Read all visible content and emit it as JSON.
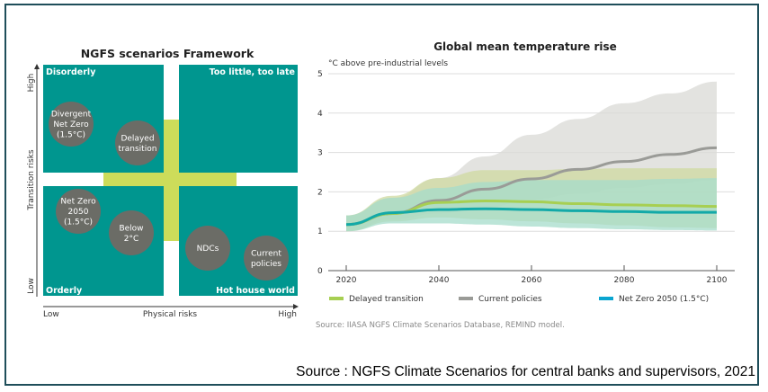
{
  "framework": {
    "title": "NGFS scenarios Framework",
    "y_axis": {
      "label": "Transition risks",
      "high": "High",
      "low": "Low"
    },
    "x_axis": {
      "label": "Physical risks",
      "low": "Low",
      "high": "High"
    },
    "quadrants": [
      "Disorderly",
      "Too little, too late",
      "Orderly",
      "Hot house world"
    ],
    "scenarios": [
      {
        "lines": [
          "Divergent",
          "Net Zero",
          "(1.5°C)"
        ]
      },
      {
        "lines": [
          "Delayed",
          "transition"
        ]
      },
      {
        "lines": [
          "Net Zero",
          "2050",
          "(1.5°C)"
        ]
      },
      {
        "lines": [
          "Below",
          "2°C"
        ]
      },
      {
        "lines": [
          "NDCs"
        ]
      },
      {
        "lines": [
          "Current",
          "policies"
        ]
      }
    ],
    "colors": {
      "quadrant": "#00968f",
      "cross": "#cddc5a",
      "circle": "#6b6c66"
    }
  },
  "chart_data": {
    "type": "line",
    "title": "Global mean temperature rise",
    "ylabel": "°C above pre-industrial levels",
    "xlabel": "",
    "xlim": [
      2020,
      2100
    ],
    "ylim": [
      0,
      5
    ],
    "x_ticks": [
      "2020",
      "2040",
      "2060",
      "2080",
      "2100"
    ],
    "y_ticks": [
      "0",
      "1",
      "2",
      "3",
      "4",
      "5"
    ],
    "grid": "horizontal",
    "legend": "bottom",
    "x": [
      2020,
      2030,
      2040,
      2050,
      2060,
      2070,
      2080,
      2090,
      2100
    ],
    "series": [
      {
        "name": "Current policies",
        "color": "#9a9b97",
        "band_color": "#d9dad6",
        "values": [
          1.17,
          1.45,
          1.78,
          2.07,
          2.33,
          2.57,
          2.77,
          2.95,
          3.12
        ],
        "upper": [
          1.4,
          1.85,
          2.35,
          2.9,
          3.45,
          3.85,
          4.25,
          4.5,
          4.8
        ],
        "lower": [
          1.0,
          1.3,
          1.45,
          1.6,
          1.8,
          1.95,
          2.1,
          2.2,
          2.3
        ]
      },
      {
        "name": "Delayed transition",
        "color": "#a7cf52",
        "band_color": "#cfd9a0",
        "values": [
          1.17,
          1.45,
          1.73,
          1.77,
          1.75,
          1.7,
          1.67,
          1.65,
          1.63
        ],
        "upper": [
          1.4,
          1.9,
          2.35,
          2.55,
          2.55,
          2.58,
          2.6,
          2.6,
          2.6
        ],
        "lower": [
          1.0,
          1.25,
          1.35,
          1.3,
          1.25,
          1.2,
          1.15,
          1.1,
          1.08
        ]
      },
      {
        "name": "Net Zero 2050 (1.5°C)",
        "color": "#13a9a8",
        "legend_color": "#0aa5d0",
        "band_color": "#a6dccb",
        "values": [
          1.17,
          1.47,
          1.55,
          1.57,
          1.55,
          1.52,
          1.5,
          1.48,
          1.48
        ],
        "upper": [
          1.4,
          1.85,
          2.1,
          2.25,
          2.3,
          2.3,
          2.3,
          2.33,
          2.35
        ],
        "lower": [
          1.0,
          1.2,
          1.2,
          1.17,
          1.12,
          1.08,
          1.05,
          1.03,
          1.02
        ]
      }
    ],
    "legend_order": [
      "Delayed transition",
      "Current policies",
      "Net Zero 2050 (1.5°C)"
    ],
    "note": "Source: IIASA NGFS Climate Scenarios Database, REMIND model."
  },
  "footer_source": "Source : NGFS Climate Scenarios for central banks and supervisors, 2021"
}
